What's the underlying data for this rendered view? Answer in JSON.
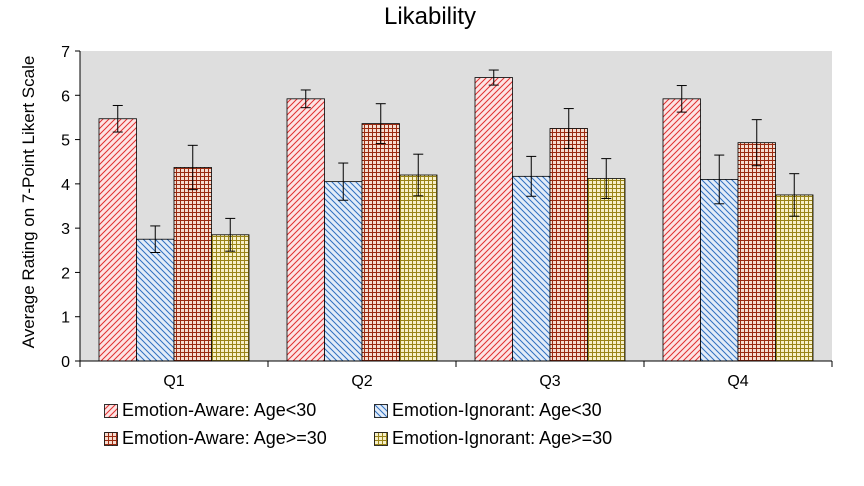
{
  "chart_data": {
    "type": "bar",
    "title": "Likability",
    "xlabel": "",
    "ylabel": "Average Rating on 7-Point Likert Scale",
    "ylim": [
      0,
      7
    ],
    "yticks": [
      0,
      1,
      2,
      3,
      4,
      5,
      6,
      7
    ],
    "grid": false,
    "legend_position": "bottom",
    "categories": [
      "Q1",
      "Q2",
      "Q3",
      "Q4"
    ],
    "series": [
      {
        "name": "Emotion-Aware: Age<30",
        "pattern": "diagonal-up",
        "color": "#e03030",
        "fill": "#fde4e4",
        "values": [
          5.47,
          5.92,
          6.4,
          5.92
        ],
        "errors": [
          0.3,
          0.2,
          0.17,
          0.3
        ]
      },
      {
        "name": "Emotion-Ignorant: Age<30",
        "pattern": "diagonal-down",
        "color": "#3070c0",
        "fill": "#e2ecf8",
        "values": [
          2.75,
          4.05,
          4.17,
          4.1
        ],
        "errors": [
          0.3,
          0.42,
          0.45,
          0.55
        ]
      },
      {
        "name": "Emotion-Aware: Age>=30",
        "pattern": "grid",
        "color": "#9a2a10",
        "fill": "#f6dccf",
        "values": [
          4.37,
          5.36,
          5.25,
          4.93
        ],
        "errors": [
          0.5,
          0.45,
          0.45,
          0.52
        ]
      },
      {
        "name": "Emotion-Ignorant: Age>=30",
        "pattern": "grid",
        "color": "#9a8418",
        "fill": "#f7f0c8",
        "values": [
          2.85,
          4.2,
          4.12,
          3.75
        ],
        "errors": [
          0.37,
          0.47,
          0.45,
          0.48
        ]
      }
    ]
  }
}
